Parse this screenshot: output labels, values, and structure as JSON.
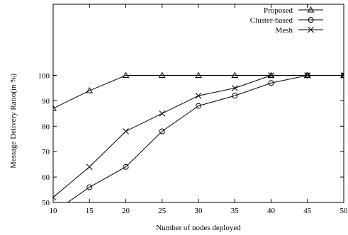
{
  "chart_data": {
    "type": "line",
    "title": "",
    "xlabel": "Number of nodes deployed",
    "ylabel": "Message Delivery Ratio(in %)",
    "x": [
      10,
      15,
      20,
      25,
      30,
      35,
      40,
      45,
      50
    ],
    "xlim": [
      10,
      50
    ],
    "ylim": [
      50,
      128
    ],
    "xticks": [
      10,
      15,
      20,
      25,
      30,
      35,
      40,
      45,
      50
    ],
    "yticks": [
      50,
      60,
      70,
      80,
      90,
      100
    ],
    "grid": false,
    "legend_position": "top-right",
    "series": [
      {
        "name": "Proposed",
        "marker": "triangle",
        "values": [
          87,
          94,
          100,
          100,
          100,
          100,
          100,
          100,
          100
        ]
      },
      {
        "name": "Cluster-based",
        "marker": "circle",
        "values": [
          46,
          56,
          64,
          78,
          88,
          92,
          97,
          100,
          100
        ]
      },
      {
        "name": "Mesh",
        "marker": "cross",
        "values": [
          52,
          64,
          78,
          85,
          92,
          95,
          100,
          100,
          100
        ]
      }
    ]
  }
}
